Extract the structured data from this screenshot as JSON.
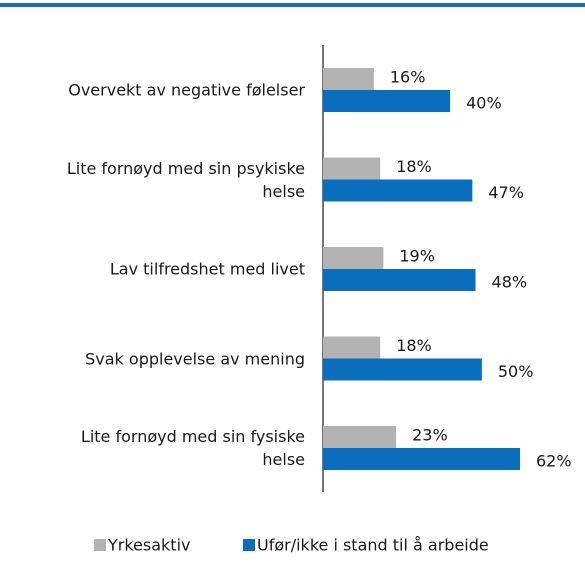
{
  "chart_data": {
    "type": "hbar",
    "categories": [
      "Overvekt av negative følelser",
      "Lite fornøyd med sin psykiske helse",
      "Lav tilfredshet med livet",
      "Svak opplevelse av mening",
      "Lite fornøyd med sin fysiske helse"
    ],
    "series": [
      {
        "name": "Yrkesaktiv",
        "color": "#b3b3b3",
        "values": [
          16,
          18,
          19,
          18,
          23
        ],
        "value_labels": [
          "16%",
          "18%",
          "19%",
          "18%",
          "23%"
        ]
      },
      {
        "name": "Ufør/ikke i stand til å arbeide",
        "color": "#0a6ebd",
        "values": [
          40,
          47,
          48,
          50,
          62
        ],
        "value_labels": [
          "40%",
          "47%",
          "48%",
          "50%",
          "62%"
        ]
      }
    ],
    "legend": "bottom"
  }
}
